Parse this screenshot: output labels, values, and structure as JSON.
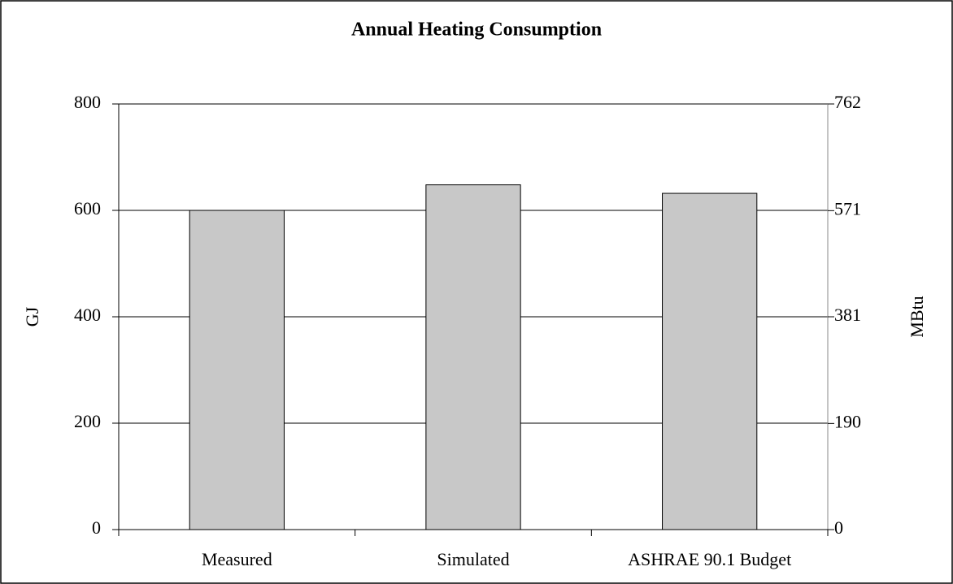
{
  "chart_data": {
    "type": "bar",
    "title": "Annual Heating Consumption",
    "categories": [
      "Measured",
      "Simulated",
      "ASHRAE 90.1 Budget"
    ],
    "values": [
      600,
      648,
      632
    ],
    "color": "#c8c8c8",
    "ylabel": "GJ",
    "y2label": "MBtu",
    "ylim": [
      0,
      800
    ],
    "yticks": [
      0,
      200,
      400,
      600,
      800
    ],
    "y2lim": [
      0,
      762
    ],
    "y2ticks": [
      0,
      190,
      381,
      571,
      762
    ],
    "grid": true
  }
}
